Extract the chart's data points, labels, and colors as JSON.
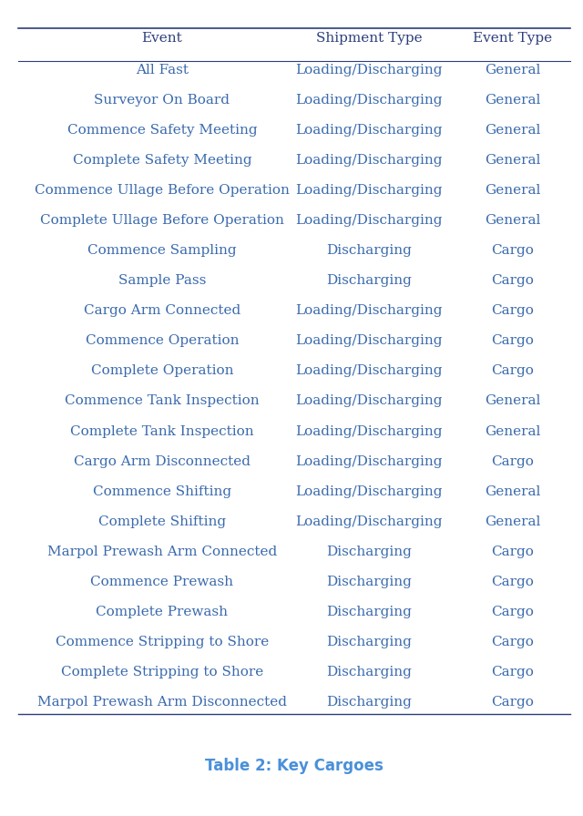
{
  "headers": [
    "Event",
    "Shipment Type",
    "Event Type"
  ],
  "rows": [
    [
      "All Fast",
      "Loading/Discharging",
      "General"
    ],
    [
      "Surveyor On Board",
      "Loading/Discharging",
      "General"
    ],
    [
      "Commence Safety Meeting",
      "Loading/Discharging",
      "General"
    ],
    [
      "Complete Safety Meeting",
      "Loading/Discharging",
      "General"
    ],
    [
      "Commence Ullage Before Operation",
      "Loading/Discharging",
      "General"
    ],
    [
      "Complete Ullage Before Operation",
      "Loading/Discharging",
      "General"
    ],
    [
      "Commence Sampling",
      "Discharging",
      "Cargo"
    ],
    [
      "Sample Pass",
      "Discharging",
      "Cargo"
    ],
    [
      "Cargo Arm Connected",
      "Loading/Discharging",
      "Cargo"
    ],
    [
      "Commence Operation",
      "Loading/Discharging",
      "Cargo"
    ],
    [
      "Complete Operation",
      "Loading/Discharging",
      "Cargo"
    ],
    [
      "Commence Tank Inspection",
      "Loading/Discharging",
      "General"
    ],
    [
      "Complete Tank Inspection",
      "Loading/Discharging",
      "General"
    ],
    [
      "Cargo Arm Disconnected",
      "Loading/Discharging",
      "Cargo"
    ],
    [
      "Commence Shifting",
      "Loading/Discharging",
      "General"
    ],
    [
      "Complete Shifting",
      "Loading/Discharging",
      "General"
    ],
    [
      "Marpol Prewash Arm Connected",
      "Discharging",
      "Cargo"
    ],
    [
      "Commence Prewash",
      "Discharging",
      "Cargo"
    ],
    [
      "Complete Prewash",
      "Discharging",
      "Cargo"
    ],
    [
      "Commence Stripping to Shore",
      "Discharging",
      "Cargo"
    ],
    [
      "Complete Stripping to Shore",
      "Discharging",
      "Cargo"
    ],
    [
      "Marpol Prewash Arm Disconnected",
      "Discharging",
      "Cargo"
    ]
  ],
  "caption": "Table 2: Key Cargoes",
  "text_color": "#3a6aad",
  "header_color": "#2c3e7a",
  "caption_color": "#4a90d9",
  "bg_color": "#ffffff",
  "line_color": "#2c3e7a",
  "font_size": 11,
  "header_font_size": 11,
  "caption_font_size": 12
}
